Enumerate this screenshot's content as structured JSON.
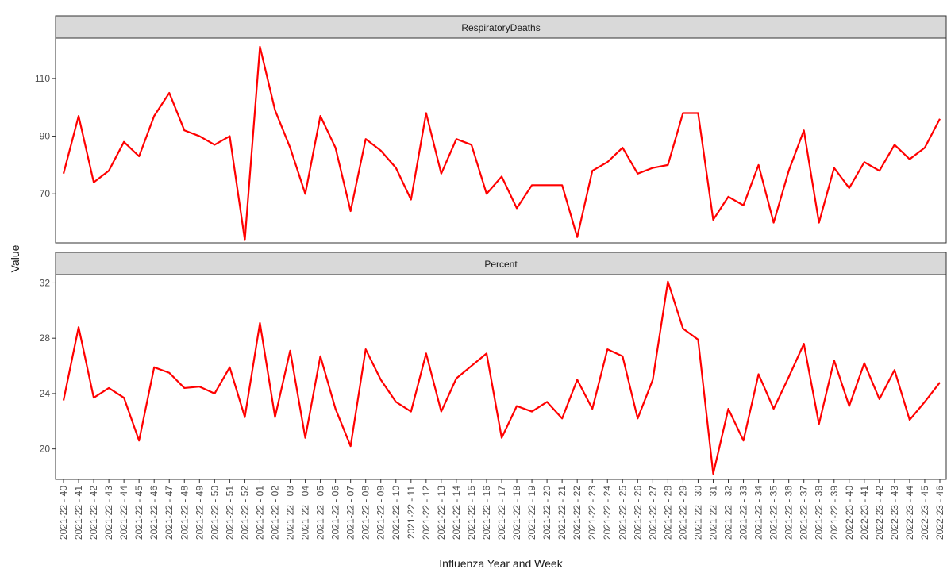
{
  "chart_data": {
    "type": "line",
    "xlabel": "Influenza Year and Week",
    "ylabel": "Value",
    "line_color": "#ff0000",
    "strip_fill": "#d9d9d9",
    "categories": [
      "2021-22 - 40",
      "2021-22 - 41",
      "2021-22 - 42",
      "2021-22 - 43",
      "2021-22 - 44",
      "2021-22 - 45",
      "2021-22 - 46",
      "2021-22 - 47",
      "2021-22 - 48",
      "2021-22 - 49",
      "2021-22 - 50",
      "2021-22 - 51",
      "2021-22 - 52",
      "2021-22 - 01",
      "2021-22 - 02",
      "2021-22 - 03",
      "2021-22 - 04",
      "2021-22 - 05",
      "2021-22 - 06",
      "2021-22 - 07",
      "2021-22 - 08",
      "2021-22 - 09",
      "2021-22 - 10",
      "2021-22 - 11",
      "2021-22 - 12",
      "2021-22 - 13",
      "2021-22 - 14",
      "2021-22 - 15",
      "2021-22 - 16",
      "2021-22 - 17",
      "2021-22 - 18",
      "2021-22 - 19",
      "2021-22 - 20",
      "2021-22 - 21",
      "2021-22 - 22",
      "2021-22 - 23",
      "2021-22 - 24",
      "2021-22 - 25",
      "2021-22 - 26",
      "2021-22 - 27",
      "2021-22 - 28",
      "2021-22 - 29",
      "2021-22 - 30",
      "2021-22 - 31",
      "2021-22 - 32",
      "2021-22 - 33",
      "2021-22 - 34",
      "2021-22 - 35",
      "2021-22 - 36",
      "2021-22 - 37",
      "2021-22 - 38",
      "2021-22 - 39",
      "2022-23 - 40",
      "2022-23 - 41",
      "2022-23 - 42",
      "2022-23 - 43",
      "2022-23 - 44",
      "2022-23 - 45",
      "2022-23 - 46"
    ],
    "panels": [
      {
        "title": "RespiratoryDeaths",
        "ylim": [
          53,
          124
        ],
        "yticks": [
          70,
          90,
          110
        ],
        "values": [
          77,
          97,
          74,
          78,
          88,
          83,
          97,
          105,
          92,
          90,
          87,
          90,
          54,
          121,
          99,
          86,
          70,
          97,
          86,
          64,
          89,
          85,
          79,
          68,
          98,
          77,
          89,
          87,
          70,
          76,
          65,
          73,
          73,
          73,
          55,
          78,
          81,
          86,
          77,
          79,
          80,
          98,
          98,
          61,
          69,
          66,
          80,
          60,
          78,
          92,
          60,
          79,
          72,
          81,
          78,
          87,
          82,
          86,
          96
        ]
      },
      {
        "title": "Percent",
        "ylim": [
          17.8,
          32.6
        ],
        "yticks": [
          20,
          24,
          28,
          32
        ],
        "values": [
          23.5,
          28.8,
          23.7,
          24.4,
          23.7,
          20.6,
          25.9,
          25.5,
          24.4,
          24.5,
          24.0,
          25.9,
          22.3,
          29.1,
          22.3,
          27.1,
          20.8,
          26.7,
          22.9,
          20.2,
          27.2,
          25.0,
          23.4,
          22.7,
          26.9,
          22.7,
          25.1,
          26.0,
          26.9,
          20.8,
          23.1,
          22.7,
          23.4,
          22.2,
          25.0,
          22.9,
          27.2,
          26.7,
          22.2,
          25.0,
          32.1,
          28.7,
          27.9,
          18.2,
          22.9,
          20.6,
          25.4,
          22.9,
          25.2,
          27.6,
          21.8,
          26.4,
          23.1,
          26.2,
          23.6,
          25.7,
          22.1,
          23.4,
          24.8
        ]
      }
    ]
  }
}
